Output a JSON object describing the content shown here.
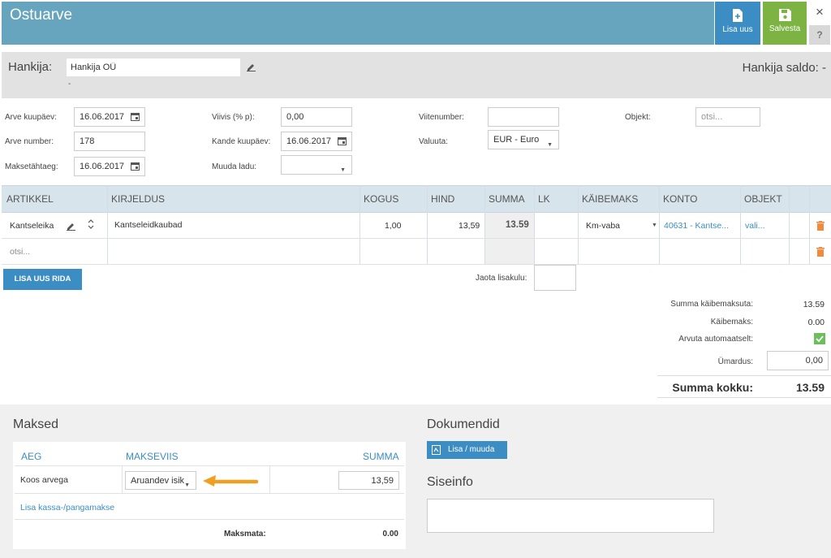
{
  "header": {
    "title": "Ostuarve",
    "new_label": "Lisa uus",
    "save_label": "Salvesta",
    "close_icon": "×",
    "help_label": "?",
    "colors": {
      "header": "#66a5bd",
      "new": "#3c8dc4",
      "save": "#7cb342"
    }
  },
  "supplier": {
    "label": "Hankija:",
    "value": "Hankija OÜ",
    "sub": "-",
    "saldo": "Hankija saldo: -"
  },
  "form": {
    "invoice_date_label": "Arve kuupäev:",
    "invoice_date": "16.06.2017",
    "invoice_number_label": "Arve number:",
    "invoice_number": "178",
    "due_date_label": "Maksetähtaeg:",
    "due_date": "16.06.2017",
    "late_fee_label": "Viivis (% p):",
    "late_fee": "0,00",
    "entry_date_label": "Kande kuupäev:",
    "entry_date": "16.06.2017",
    "warehouse_label": "Muuda ladu:",
    "warehouse": "",
    "reference_label": "Viitenumber:",
    "reference": "",
    "currency_label": "Valuuta:",
    "currency": "EUR - Euro",
    "object_label": "Objekt:",
    "object_placeholder": "otsi..."
  },
  "table": {
    "headers": [
      "ARTIKKEL",
      "KIRJELDUS",
      "KOGUS",
      "HIND",
      "SUMMA",
      "LK",
      "KÄIBEMAKS",
      "KONTO",
      "OBJEKT"
    ],
    "rows": [
      {
        "article": "Kantseleika",
        "description": "Kantseleidkaubad",
        "qty": "1,00",
        "price": "13,59",
        "sum": "13.59",
        "lk": "",
        "vat": "Km-vaba",
        "account": "40631 - Kantse...",
        "object": "vali..."
      }
    ],
    "search_placeholder": "otsi..."
  },
  "add_row_label": "LISA UUS RIDA",
  "distribute_label": "Jaota lisakulu:",
  "totals": {
    "net_label": "Summa käibemaksuta:",
    "net": "13.59",
    "vat_label": "Käibemaks:",
    "vat": "0.00",
    "auto_label": "Arvuta automaatselt:",
    "auto_checked": true,
    "rounding_label": "Ümardus:",
    "rounding": "0,00",
    "total_label": "Summa kokku:",
    "total": "13.59"
  },
  "payments": {
    "title": "Maksed",
    "col_time": "AEG",
    "col_method": "MAKSEVIIS",
    "col_sum": "SUMMA",
    "row_time": "Koos arvega",
    "row_method": "Aruandev isik",
    "row_sum": "13,59",
    "add_link": "Lisa kassa-/pangamakse",
    "unpaid_label": "Maksmata:",
    "unpaid": "0.00"
  },
  "documents": {
    "title": "Dokumendid",
    "button": "Lisa / muuda"
  },
  "internal": {
    "title": "Siseinfo"
  }
}
